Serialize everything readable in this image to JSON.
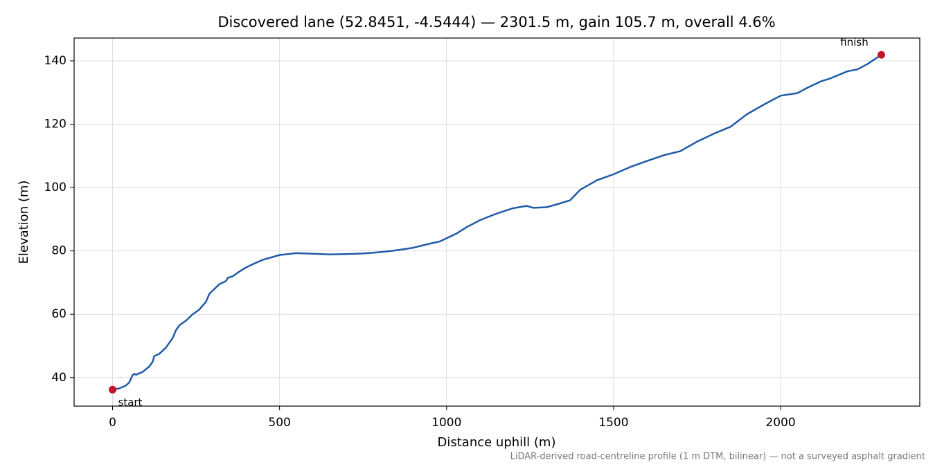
{
  "chart_data": {
    "type": "line",
    "title": "Discovered lane (52.8451, -4.5444) — 2301.5 m, gain 105.7 m, overall 4.6%",
    "xlabel": "Distance uphill (m)",
    "ylabel": "Elevation (m)",
    "footnote": "LiDAR-derived road-centreline profile (1 m DTM, bilinear) — not a surveyed asphalt gradient",
    "x": [
      0,
      20,
      40,
      50,
      60,
      65,
      70,
      90,
      110,
      120,
      125,
      140,
      160,
      170,
      180,
      190,
      200,
      220,
      240,
      260,
      280,
      290,
      300,
      310,
      320,
      340,
      345,
      360,
      380,
      400,
      420,
      450,
      500,
      550,
      600,
      650,
      700,
      750,
      800,
      850,
      900,
      950,
      980,
      1000,
      1030,
      1060,
      1100,
      1150,
      1200,
      1240,
      1260,
      1300,
      1340,
      1370,
      1400,
      1450,
      1500,
      1550,
      1600,
      1650,
      1700,
      1750,
      1800,
      1850,
      1900,
      1950,
      2000,
      2050,
      2080,
      2120,
      2150,
      2200,
      2230,
      2260,
      2301.5
    ],
    "series": [
      {
        "color": "#1f5aa6",
        "values": [
          36.2,
          36.6,
          37.5,
          38.5,
          40.8,
          41.2,
          40.9,
          41.8,
          43.5,
          45,
          46.8,
          47.5,
          49.5,
          51,
          52.5,
          55,
          56.5,
          58,
          60,
          61.5,
          64,
          66.5,
          67.5,
          68.5,
          69.5,
          70.5,
          71.5,
          72,
          73.5,
          74.8,
          75.8,
          77.2,
          78.7,
          79.3,
          79.1,
          78.9,
          79,
          79.2,
          79.6,
          80.2,
          81,
          82.3,
          83,
          84,
          85.5,
          87.5,
          89.7,
          91.8,
          93.5,
          94.2,
          93.6,
          93.8,
          95,
          96,
          99.3,
          102.3,
          104.2,
          106.5,
          108.4,
          110.2,
          111.5,
          114.5,
          117,
          119.2,
          123.2,
          126.2,
          129,
          129.8,
          131.5,
          133.5,
          134.5,
          136.7,
          137.3,
          139,
          141.9
        ]
      }
    ],
    "points": {
      "color": "#c0182a",
      "x": [
        0,
        2301.5
      ],
      "values": [
        36.2,
        141.9
      ],
      "labels": [
        "start",
        "finish"
      ]
    },
    "xlim": [
      -115.1,
      2416.6
    ],
    "ylim": [
      31.0,
      147.2
    ],
    "xticks": [
      0,
      500,
      1000,
      1500,
      2000
    ],
    "yticks": [
      40,
      60,
      80,
      100,
      120,
      140
    ],
    "grid": true
  }
}
